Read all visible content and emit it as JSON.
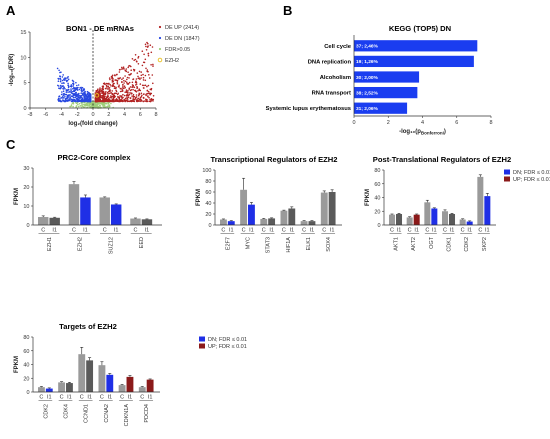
{
  "panel_labels": {
    "a": "A",
    "b": "B",
    "c": "C"
  },
  "chart_data": [
    {
      "id": "volcano",
      "type": "scatter",
      "title": "BON1 - DE mRNAs",
      "xlabel": "log₂(fold change)",
      "ylabel": "-log₁₀(FDR)",
      "xlim": [
        -8,
        8
      ],
      "ylim": [
        0,
        15
      ],
      "xticks": [
        -8,
        -6,
        -4,
        -2,
        0,
        2,
        4,
        6,
        8
      ],
      "yticks": [
        0,
        5,
        10,
        15
      ],
      "legend": [
        "DE UP (2414)",
        "DE DN (1847)",
        "FDR>0.05",
        "EZH2"
      ],
      "colors": {
        "up": "#b22222",
        "dn": "#2747e0",
        "ns": "#9fce7a",
        "ezh2": "#e8c020"
      },
      "clusters": [
        {
          "group": "up",
          "count": 2414,
          "x_range": [
            0.3,
            7.8
          ],
          "y_range": [
            1.3,
            13.5
          ]
        },
        {
          "group": "dn",
          "count": 1847,
          "x_range": [
            -4.5,
            -0.3
          ],
          "y_range": [
            1.3,
            8
          ]
        },
        {
          "group": "ns",
          "count": 600,
          "x_range": [
            -3,
            3
          ],
          "y_range": [
            0,
            1.3
          ]
        }
      ],
      "highlight": {
        "name": "EZH2",
        "x": 0.5,
        "y": 2.5
      }
    },
    {
      "id": "kegg",
      "type": "bar",
      "orientation": "horizontal",
      "title": "KEGG (TOP5) DN",
      "xlabel": "-log₁₀(p",
      "xlabel_sub": "Bonferroni",
      "xlabel_end": ")",
      "xlim": [
        0,
        8
      ],
      "xticks": [
        0,
        2,
        4,
        6,
        8
      ],
      "bar_color": "#1a3df0",
      "categories": [
        "Cell cycle",
        "DNA replication",
        "Alcoholism",
        "RNA transport",
        "Systemic lupus erythematosus"
      ],
      "values": [
        7.2,
        7.0,
        3.8,
        3.7,
        3.1
      ],
      "bar_labels": [
        "37; 2,46%",
        "19; 1,26%",
        "30; 2,00%",
        "38; 2,52%",
        "31; 2,06%"
      ]
    },
    {
      "id": "prc2",
      "type": "bar",
      "title": "PRC2-Core complex",
      "ylabel": "FPKM",
      "ylim": [
        0,
        30
      ],
      "yticks": [
        0,
        10,
        20,
        30
      ],
      "groups": [
        "EZH1",
        "EZH2",
        "SUZ12",
        "EED"
      ],
      "conditions": [
        "C",
        "I1"
      ],
      "values": [
        [
          4.2,
          3.8
        ],
        [
          21.5,
          14.5
        ],
        [
          14.5,
          10.8
        ],
        [
          3.4,
          3.0
        ]
      ],
      "errors": [
        [
          0.6,
          0.3
        ],
        [
          1.3,
          1.3
        ],
        [
          0.3,
          0.3
        ],
        [
          0.3,
          0.2
        ]
      ],
      "status": [
        "ns",
        "dn",
        "dn",
        "ns"
      ]
    },
    {
      "id": "transcriptional",
      "type": "bar",
      "title": "Transcriptional Regulators of EZH2",
      "ylabel": "FPKM",
      "ylim": [
        0,
        100
      ],
      "yticks": [
        0,
        20,
        40,
        60,
        80,
        100
      ],
      "groups": [
        "E2F7",
        "MYC",
        "STAT3",
        "HIF1A",
        "ELK1",
        "SOX4"
      ],
      "conditions": [
        "C",
        "I1"
      ],
      "values": [
        [
          10,
          7
        ],
        [
          64,
          37
        ],
        [
          11,
          12
        ],
        [
          26,
          30
        ],
        [
          7,
          7
        ],
        [
          59,
          60
        ]
      ],
      "errors": [
        [
          1,
          1
        ],
        [
          21,
          4
        ],
        [
          1,
          1
        ],
        [
          1,
          3
        ],
        [
          1,
          1
        ],
        [
          3,
          4
        ]
      ],
      "status": [
        "dn",
        "dn",
        "ns",
        "ns",
        "ns",
        "ns"
      ]
    },
    {
      "id": "posttranslational",
      "type": "bar",
      "title": "Post-Translational Regulators of EZH2",
      "ylabel": "FPKM",
      "ylim": [
        0,
        80
      ],
      "yticks": [
        0,
        20,
        40,
        60,
        80
      ],
      "groups": [
        "AKT1",
        "AKT2",
        "OGT",
        "CDK1",
        "CDK2",
        "SKP2"
      ],
      "conditions": [
        "C",
        "I1"
      ],
      "values": [
        [
          15,
          16
        ],
        [
          11,
          15
        ],
        [
          33,
          24
        ],
        [
          20,
          16
        ],
        [
          8,
          5
        ],
        [
          70,
          42
        ]
      ],
      "errors": [
        [
          1,
          1
        ],
        [
          1,
          1
        ],
        [
          3,
          1
        ],
        [
          2,
          1
        ],
        [
          1,
          1
        ],
        [
          3,
          4
        ]
      ],
      "status": [
        "ns",
        "up",
        "dn",
        "ns",
        "dn",
        "dn"
      ],
      "legend": [
        "DN; FDR ≤ 0.01",
        "UP; FDR ≤ 0.01"
      ]
    },
    {
      "id": "targets",
      "type": "bar",
      "title": "Targets of EZH2",
      "ylabel": "FPKM",
      "ylim": [
        0,
        80
      ],
      "yticks": [
        0,
        20,
        40,
        60,
        80
      ],
      "groups": [
        "CDK2",
        "CDK4",
        "CCND1",
        "CCNA2",
        "CDKN1A",
        "PDCD4"
      ],
      "conditions": [
        "C",
        "I1"
      ],
      "values": [
        [
          7,
          5
        ],
        [
          14,
          13
        ],
        [
          55,
          46
        ],
        [
          39,
          25
        ],
        [
          10,
          22
        ],
        [
          7,
          18
        ]
      ],
      "errors": [
        [
          1,
          1
        ],
        [
          1,
          1
        ],
        [
          10,
          4
        ],
        [
          5,
          2
        ],
        [
          1,
          2
        ],
        [
          1,
          1
        ]
      ],
      "status": [
        "dn",
        "ns",
        "ns",
        "dn",
        "up",
        "up"
      ],
      "legend": [
        "DN; FDR ≤ 0.01",
        "UP; FDR ≤ 0.01"
      ]
    }
  ],
  "colors": {
    "control": "#9a9a9a",
    "treated_ns": "#5a5a5a",
    "dn": "#1f2fe6",
    "up": "#8b1a1a",
    "axis": "#333333"
  }
}
